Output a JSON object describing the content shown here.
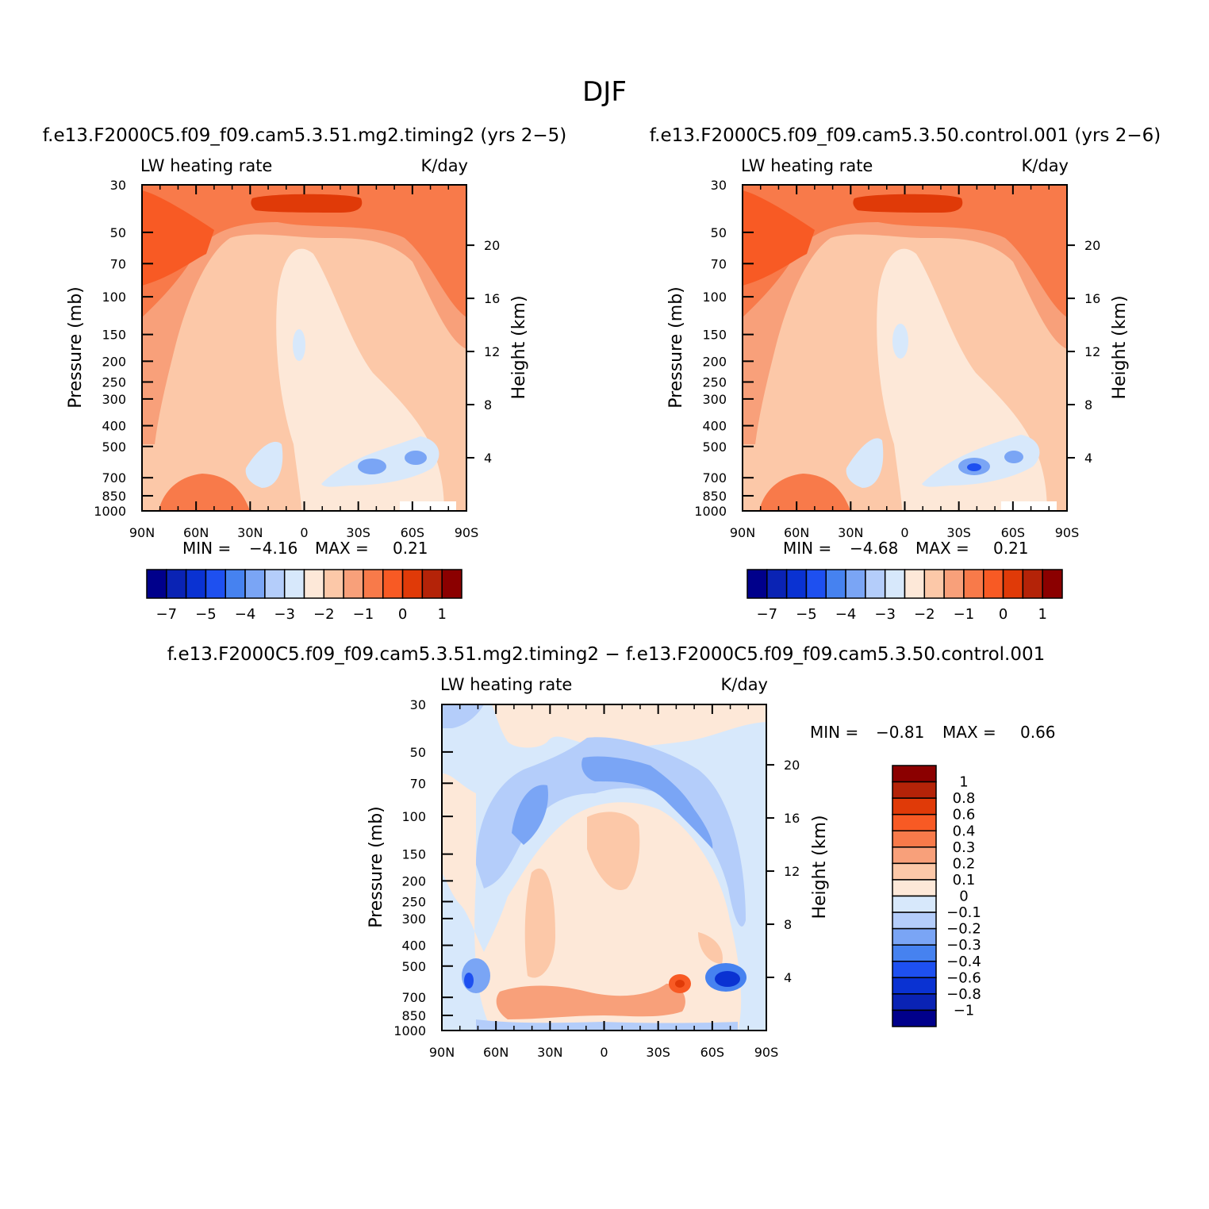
{
  "figure": {
    "title": "DJF",
    "palette": {
      "panels": [
        "#00008b",
        "#0a23b4",
        "#0a32d2",
        "#1e50f0",
        "#4682f0",
        "#7aa5f5",
        "#b4cdfa",
        "#d7e8fb",
        "#fde8d8",
        "#fcc8a8",
        "#f8a07a",
        "#f87a4a",
        "#f85a24",
        "#e03a08",
        "#b42308",
        "#8b0000"
      ],
      "diff": [
        "#00008b",
        "#0a23b4",
        "#0a32d2",
        "#1e50f0",
        "#4682f0",
        "#7aa5f5",
        "#b4cdfa",
        "#d7e8fb",
        "#fde8d8",
        "#fcc8a8",
        "#f8a07a",
        "#f87a4a",
        "#f85a24",
        "#e03a08",
        "#b42308",
        "#8b0000"
      ]
    }
  },
  "chart_data": [
    {
      "type": "heatmap",
      "case_title": "f.e13.F2000C5.f09_f09.cam5.3.51.mg2.timing2 (yrs 2−5)",
      "variable": "LW heating rate",
      "units": "K/day",
      "ylabel": "Pressure (mb)",
      "ylabel_right": "Height (km)",
      "x_ticks": [
        "90N",
        "60N",
        "30N",
        "0",
        "30S",
        "60S",
        "90S"
      ],
      "y_ticks": [
        "30",
        "50",
        "70",
        "100",
        "150",
        "200",
        "250",
        "300",
        "400",
        "500",
        "700",
        "850",
        "1000"
      ],
      "height_ticks": [
        "20",
        "16",
        "12",
        "8",
        "4"
      ],
      "stats": {
        "min_label": "MIN =",
        "min": "−4.16",
        "max_label": "MAX =",
        "max": "0.21"
      },
      "colorbar_labels": [
        "−7",
        "−5",
        "−4",
        "−3",
        "−2",
        "−1",
        "0",
        "1"
      ]
    },
    {
      "type": "heatmap",
      "case_title": "f.e13.F2000C5.f09_f09.cam5.3.50.control.001 (yrs 2−6)",
      "variable": "LW heating rate",
      "units": "K/day",
      "ylabel": "Pressure (mb)",
      "ylabel_right": "Height (km)",
      "x_ticks": [
        "90N",
        "60N",
        "30N",
        "0",
        "30S",
        "60S",
        "90S"
      ],
      "y_ticks": [
        "30",
        "50",
        "70",
        "100",
        "150",
        "200",
        "250",
        "300",
        "400",
        "500",
        "700",
        "850",
        "1000"
      ],
      "height_ticks": [
        "20",
        "16",
        "12",
        "8",
        "4"
      ],
      "stats": {
        "min_label": "MIN =",
        "min": "−4.68",
        "max_label": "MAX =",
        "max": "0.21"
      },
      "colorbar_labels": [
        "−7",
        "−5",
        "−4",
        "−3",
        "−2",
        "−1",
        "0",
        "1"
      ]
    },
    {
      "type": "heatmap",
      "case_title": "f.e13.F2000C5.f09_f09.cam5.3.51.mg2.timing2 − f.e13.F2000C5.f09_f09.cam5.3.50.control.001",
      "variable": "LW heating rate",
      "units": "K/day",
      "ylabel": "Pressure (mb)",
      "ylabel_right": "Height (km)",
      "x_ticks": [
        "90N",
        "60N",
        "30N",
        "0",
        "30S",
        "60S",
        "90S"
      ],
      "y_ticks": [
        "30",
        "50",
        "70",
        "100",
        "150",
        "200",
        "250",
        "300",
        "400",
        "500",
        "700",
        "850",
        "1000"
      ],
      "height_ticks": [
        "20",
        "16",
        "12",
        "8",
        "4"
      ],
      "stats": {
        "min_label": "MIN =",
        "min": "−0.81",
        "max_label": "MAX =",
        "max": "0.66"
      },
      "colorbar_labels": [
        "1",
        "0.8",
        "0.6",
        "0.4",
        "0.3",
        "0.2",
        "0.1",
        "0",
        "−0.1",
        "−0.2",
        "−0.3",
        "−0.4",
        "−0.6",
        "−0.8",
        "−1"
      ]
    }
  ]
}
